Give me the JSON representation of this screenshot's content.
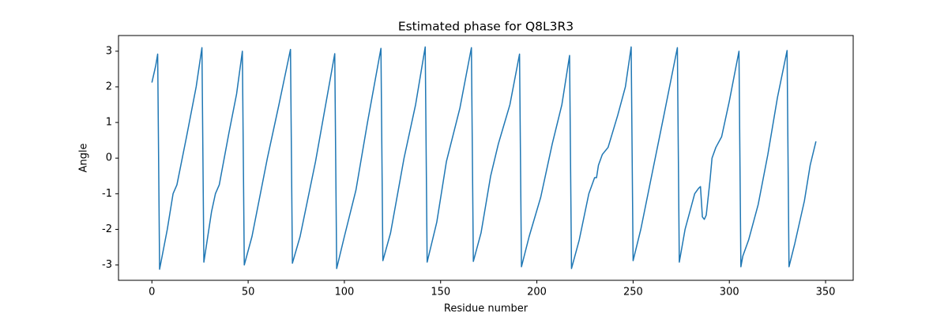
{
  "chart_data": {
    "type": "line",
    "title": "Estimated phase for Q8L3R3",
    "x_label": "Residue number",
    "y_label": "Angle",
    "color": "#1f77b4",
    "x": [
      0,
      2,
      3,
      4,
      8,
      11,
      13,
      18,
      23,
      26,
      27,
      31,
      33,
      35,
      40,
      44,
      47,
      48,
      52,
      60,
      66,
      72,
      73,
      77,
      85,
      95,
      96,
      100,
      106,
      112,
      119,
      120,
      124,
      131,
      137,
      142,
      143,
      148,
      153,
      160,
      166,
      167,
      171,
      176,
      180,
      186,
      191,
      192,
      196,
      202,
      208,
      213,
      217,
      218,
      222,
      227,
      230,
      231,
      232,
      234,
      237,
      242,
      246,
      249,
      250,
      254,
      260,
      266,
      273,
      274,
      277,
      280,
      282,
      284,
      285,
      286,
      287,
      288,
      290,
      291,
      293,
      296,
      300,
      305,
      306,
      307,
      310,
      315,
      320,
      325,
      330,
      331,
      334,
      339,
      342,
      345
    ],
    "values": [
      2.12,
      2.6,
      2.92,
      -3.12,
      -2.0,
      -1.0,
      -0.75,
      0.6,
      2.0,
      3.1,
      -2.92,
      -1.5,
      -1.0,
      -0.75,
      0.7,
      1.8,
      3.0,
      -3.0,
      -2.2,
      0.0,
      1.5,
      3.05,
      -2.95,
      -2.2,
      -0.1,
      2.93,
      -3.1,
      -2.2,
      -0.9,
      1.0,
      3.08,
      -2.88,
      -2.1,
      0.0,
      1.5,
      3.12,
      -2.92,
      -1.8,
      -0.1,
      1.4,
      3.1,
      -2.9,
      -2.1,
      -0.5,
      0.4,
      1.5,
      2.92,
      -3.05,
      -2.2,
      -1.1,
      0.4,
      1.5,
      2.88,
      -3.1,
      -2.3,
      -1.0,
      -0.55,
      -0.55,
      -0.2,
      0.1,
      0.3,
      1.2,
      2.0,
      3.12,
      -2.88,
      -2.0,
      -0.4,
      1.2,
      3.1,
      -2.92,
      -2.0,
      -1.4,
      -1.0,
      -0.85,
      -0.8,
      -1.65,
      -1.72,
      -1.6,
      -0.6,
      0.0,
      0.3,
      0.6,
      1.6,
      3.0,
      -3.05,
      -2.75,
      -2.3,
      -1.3,
      0.1,
      1.7,
      3.02,
      -3.05,
      -2.4,
      -1.2,
      -0.2,
      0.47
    ],
    "xlim": [
      -17.35,
      364.35
    ],
    "ylim": [
      -3.43,
      3.44
    ],
    "xticks": [
      0,
      50,
      100,
      150,
      200,
      250,
      300,
      350
    ],
    "yticks": [
      -3,
      -2,
      -1,
      0,
      1,
      2,
      3
    ]
  }
}
